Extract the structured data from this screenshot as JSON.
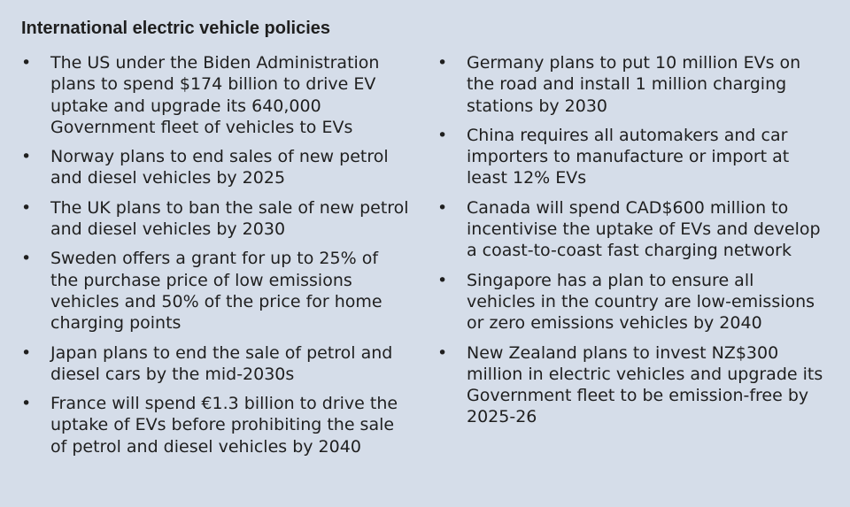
{
  "title": "International electric vehicle policies",
  "bullet_glyph": "•",
  "left_items": [
    {
      "text": "The US under the Biden Administration plans to spend $174 billion to drive EV uptake and upgrade its 640,000 Government fleet of vehicles to EVs"
    },
    {
      "text": "Norway plans to end sales of new petrol and diesel vehicles by 2025"
    },
    {
      "text": "The UK plans to ban the sale of new petrol and diesel vehicles by 2030"
    },
    {
      "text": "Sweden offers a grant for up to 25% of the purchase price of low emissions vehicles and 50% of the price for home charging points"
    },
    {
      "text": "Japan plans to end the sale of petrol and diesel cars by the mid-2030s"
    },
    {
      "text": "France will spend €1.3 billion to drive the uptake of EVs before prohibiting the sale of petrol and diesel vehicles by 2040"
    }
  ],
  "right_items": [
    {
      "text": "Germany plans to put 10 million EVs on the road and install 1 million charging stations by 2030"
    },
    {
      "text": "China requires all automakers and car importers to manufacture or import at least 12% EVs"
    },
    {
      "text": "Canada will spend CAD$600 million to incentivise the uptake of EVs and develop a coast-to-coast fast charging network"
    },
    {
      "text": "Singapore has a plan to ensure all vehicles in the country are low-emissions or zero emissions vehicles by 2040"
    },
    {
      "text": "New Zealand plans to invest NZ$300 million in electric vehicles and upgrade its Government fleet to be emission-free by 2025-26"
    }
  ],
  "colors": {
    "background": "#d5dde9",
    "text": "#1f1f1f"
  }
}
